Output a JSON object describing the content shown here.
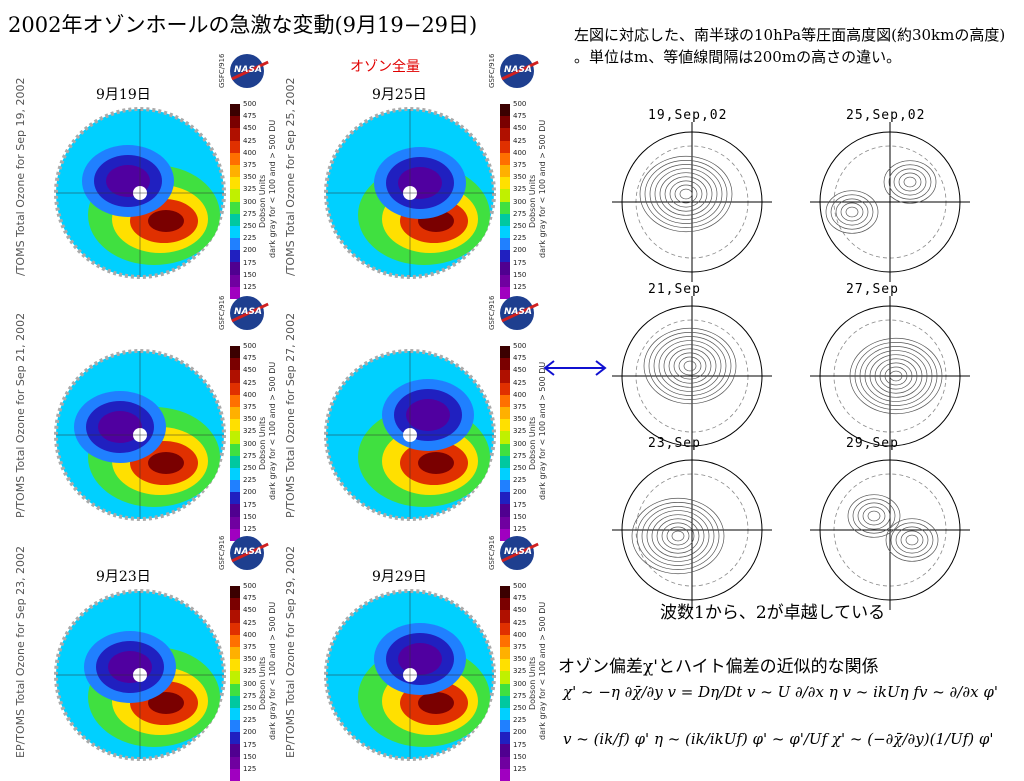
{
  "title": "2002年オゾンホールの急激な変動(9月19−29日)",
  "ozone_label": "オゾン全量",
  "colorbar": {
    "ticks": [
      "500",
      "475",
      "450",
      "425",
      "400",
      "375",
      "350",
      "325",
      "300",
      "275",
      "250",
      "225",
      "200",
      "175",
      "150",
      "125"
    ],
    "unit_label": "Dobson Units",
    "note": "dark gray for < 100 and > 500 DU",
    "colors": [
      "#3b0000",
      "#7a0000",
      "#b01000",
      "#e03000",
      "#ff7000",
      "#ffb000",
      "#ffe000",
      "#c0f000",
      "#40e040",
      "#00c8a0",
      "#00d0ff",
      "#2080ff",
      "#2020c0",
      "#500090",
      "#7000a0",
      "#a000c0"
    ]
  },
  "nasa_text": "NASA",
  "gsfc_text": "GSFC/916",
  "panels": [
    {
      "date": "9月19日",
      "side": "/TOMS Total Ozone for Sep 19, 2002"
    },
    {
      "date": "9月25日",
      "side": "/TOMS Total Ozone for Sep 25, 2002"
    },
    {
      "date": "",
      "side": "P/TOMS Total Ozone for Sep 21, 2002"
    },
    {
      "date": "",
      "side": "P/TOMS Total Ozone for Sep 27, 2002"
    },
    {
      "date": "9月23日",
      "side": "EP/TOMS Total Ozone for Sep 23, 2002"
    },
    {
      "date": "9月29日",
      "side": "EP/TOMS Total Ozone for Sep 29, 2002"
    }
  ],
  "description": "左図に対応した、南半球の10hPa等圧面高度図(約30kmの高度) 。単位はm、等値線間隔は200mの高さの違い。",
  "height_panels": [
    {
      "label": "19,Sep,02"
    },
    {
      "label": "25,Sep,02"
    },
    {
      "label": "21,Sep"
    },
    {
      "label": "27,Sep"
    },
    {
      "label": "23,Sep"
    },
    {
      "label": "29,Sep"
    }
  ],
  "caption": "波数1から、2が卓越している",
  "relation_title": "オゾン偏差χ'とハイト偏差の近似的な関係",
  "equations_line1": "χ' ~ −η ∂χ̄/∂y     v = Dη/Dt     v ~ U ∂/∂x η     v ~ ikUη     fv ~ ∂/∂x φ'",
  "equations_line2": "v ~ (ik/f) φ'     η ~ (ik/ikUf) φ' ~ φ'/Uf     χ' ~ (−∂χ̄/∂y)(1/Uf) φ'"
}
